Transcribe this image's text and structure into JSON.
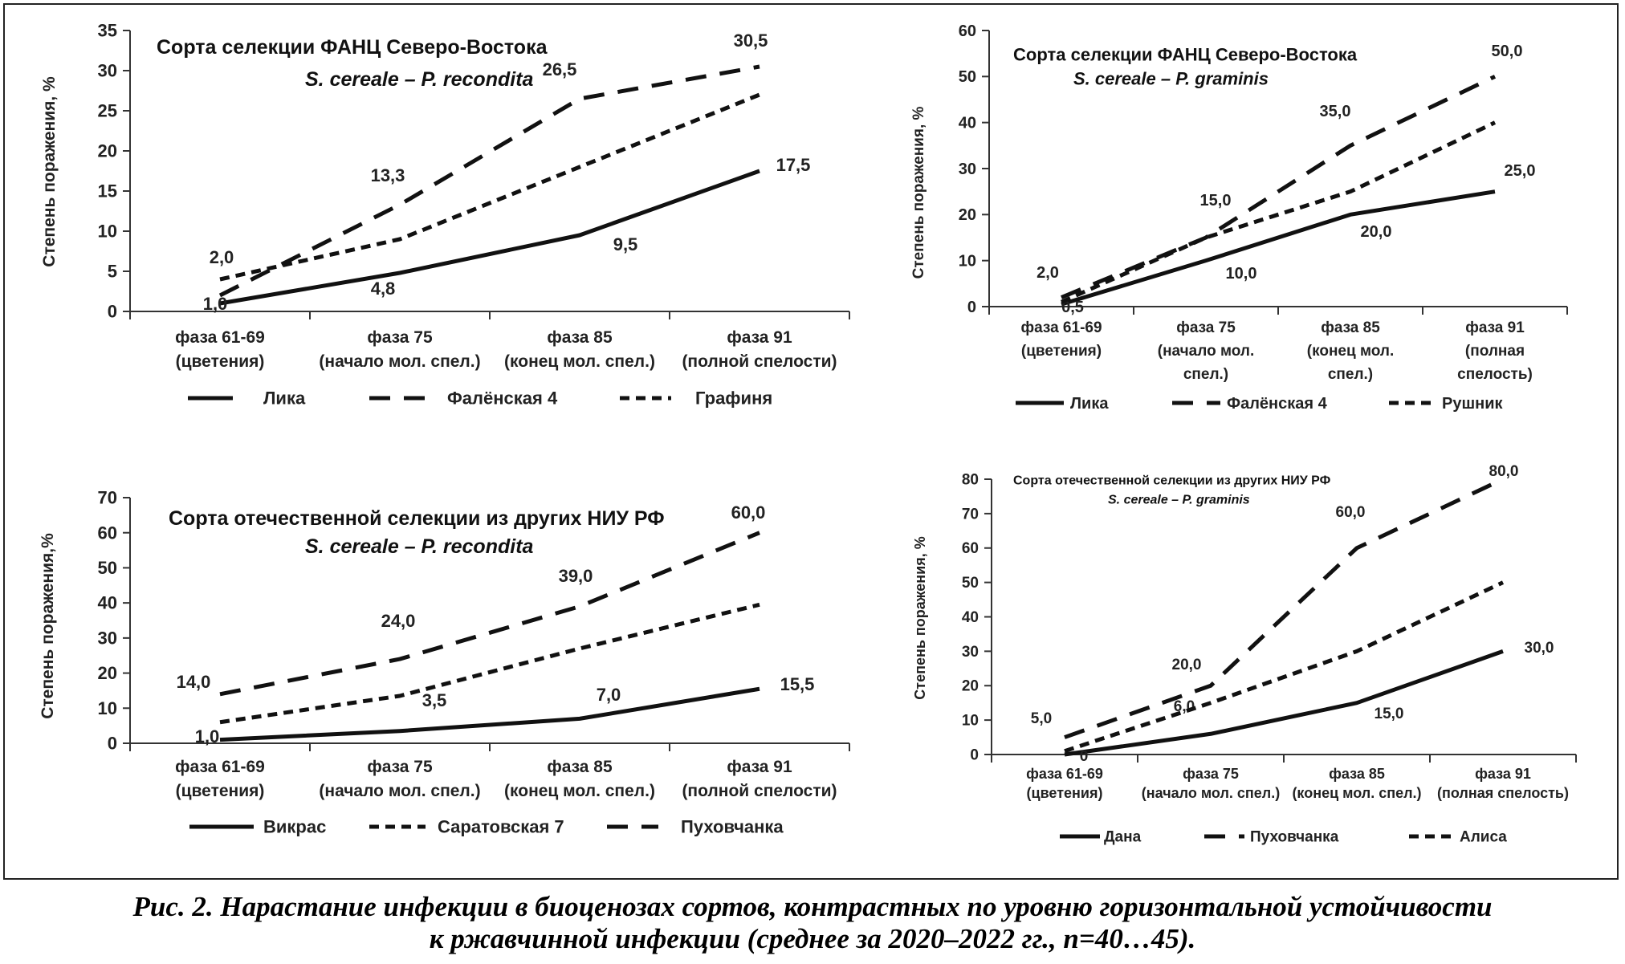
{
  "caption": {
    "line1": "Рис. 2. Нарастание инфекции в биоценозах сортов, контрастных по уровню горизонтальной устойчивости",
    "line2": "к ржавчинной инфекции (среднее за 2020–2022 гг., n=40…45)."
  },
  "chart_data": [
    {
      "type": "line",
      "title": "Сорта селекции ФАНЦ Северо-Востока",
      "subtitle": "S. cereale  –  P. recondita",
      "ylabel": "Степень    поражения, %",
      "ylim": [
        0,
        35
      ],
      "yticks": [
        "0",
        "5",
        "10",
        "15",
        "20",
        "25",
        "30",
        "35"
      ],
      "categories": [
        [
          "фаза 61-69",
          "(цветения)"
        ],
        [
          "фаза    75",
          "(начало мол. спел.)"
        ],
        [
          "фаза 85",
          "(конец мол. спел.)"
        ],
        [
          "фаза 91",
          "(полной спелости)"
        ]
      ],
      "series": [
        {
          "name": "Лика",
          "style": "solid",
          "values": [
            1.0,
            4.8,
            9.5,
            17.5
          ],
          "labels": [
            "1,0",
            "4,8",
            "9,5",
            "17,5"
          ]
        },
        {
          "name": "Фалёнская 4",
          "style": "longdash",
          "values": [
            2.0,
            13.3,
            26.5,
            30.5
          ],
          "labels": [
            "2,0",
            "13,3",
            "26,5",
            "30,5"
          ]
        },
        {
          "name": "Графиня",
          "style": "shortdash",
          "values": [
            4.0,
            9.0,
            18.0,
            27.0
          ],
          "labels": null
        }
      ]
    },
    {
      "type": "line",
      "title": "Сорта селекции ФАНЦ Северо-Востока",
      "subtitle": "S. cereale  –  P. graminis",
      "ylabel": "Степень поражения, %",
      "ylim": [
        0,
        60
      ],
      "yticks": [
        "0",
        "10",
        "20",
        "30",
        "40",
        "50",
        "60"
      ],
      "categories": [
        [
          "фаза 61-69",
          "(цветения)"
        ],
        [
          "фаза    75",
          "(начало мол.",
          "спел.)"
        ],
        [
          "фаза 85",
          "(конец мол.",
          "спел.)"
        ],
        [
          "фаза 91",
          "(полная",
          "спелость)"
        ]
      ],
      "series": [
        {
          "name": "Лика",
          "style": "solid",
          "values": [
            0.5,
            10.0,
            20.0,
            25.0
          ],
          "labels": [
            "0,5",
            "10,0",
            "20,0",
            "25,0"
          ]
        },
        {
          "name": "Фалёнская 4",
          "style": "longdash",
          "values": [
            2.0,
            15.0,
            35.0,
            50.0
          ],
          "labels": [
            "2,0",
            "15,0",
            "35,0",
            "50,0"
          ]
        },
        {
          "name": "Рушник",
          "style": "shortdash",
          "values": [
            1.0,
            15.0,
            25.0,
            40.0
          ],
          "labels": null
        }
      ]
    },
    {
      "type": "line",
      "title": "Сорта отечественной селекции из других НИУ РФ",
      "subtitle": "S. cereale  –  P. recondita",
      "ylabel": "Степень поражения,%",
      "ylim": [
        0,
        70
      ],
      "yticks": [
        "0",
        "10",
        "20",
        "30",
        "40",
        "50",
        "60",
        "70"
      ],
      "categories": [
        [
          "фаза 61-69",
          "(цветения)"
        ],
        [
          "фаза    75",
          "(начало мол. спел.)"
        ],
        [
          "фаза 85",
          "(конец мол. спел.)"
        ],
        [
          "фаза 91",
          "(полной спелости)"
        ]
      ],
      "series": [
        {
          "name": "Викрас",
          "style": "solid",
          "values": [
            1.0,
            3.5,
            7.0,
            15.5
          ],
          "labels": [
            "1,0",
            "3,5",
            "7,0",
            "15,5"
          ]
        },
        {
          "name": "Саратовская 7",
          "style": "shortdash",
          "values": [
            6.0,
            13.5,
            27.0,
            39.5
          ],
          "labels": null
        },
        {
          "name": "Пуховчанка",
          "style": "longdash",
          "values": [
            14.0,
            24.0,
            39.0,
            60.0
          ],
          "labels": [
            "14,0",
            "24,0",
            "39,0",
            "60,0"
          ]
        }
      ]
    },
    {
      "type": "line",
      "title": "Сорта отечественной селекции из других НИУ РФ",
      "subtitle": "S. cereale  –  P. graminis",
      "ylabel": "Степень поражения, %",
      "ylim": [
        0,
        80
      ],
      "yticks": [
        "0",
        "10",
        "20",
        "30",
        "40",
        "50",
        "60",
        "70",
        "80"
      ],
      "categories": [
        [
          "фаза 61-69",
          "(цветения)"
        ],
        [
          "фаза    75",
          "(начало мол. спел.)"
        ],
        [
          "фаза 85",
          "(конец мол. спел.)"
        ],
        [
          "фаза 91",
          "(полная спелость)"
        ]
      ],
      "series": [
        {
          "name": "Дана",
          "style": "solid",
          "values": [
            0,
            6.0,
            15.0,
            30.0
          ],
          "labels": [
            "0",
            "6,0",
            "15,0",
            "30,0"
          ]
        },
        {
          "name": "Пуховчанка",
          "style": "longdash",
          "values": [
            5.0,
            20.0,
            60.0,
            80.0
          ],
          "labels": [
            "5,0",
            "20,0",
            "60,0",
            "80,0"
          ]
        },
        {
          "name": "Алиса",
          "style": "shortdash",
          "values": [
            1.0,
            15.0,
            30.0,
            50.0
          ],
          "labels": null
        }
      ]
    }
  ]
}
